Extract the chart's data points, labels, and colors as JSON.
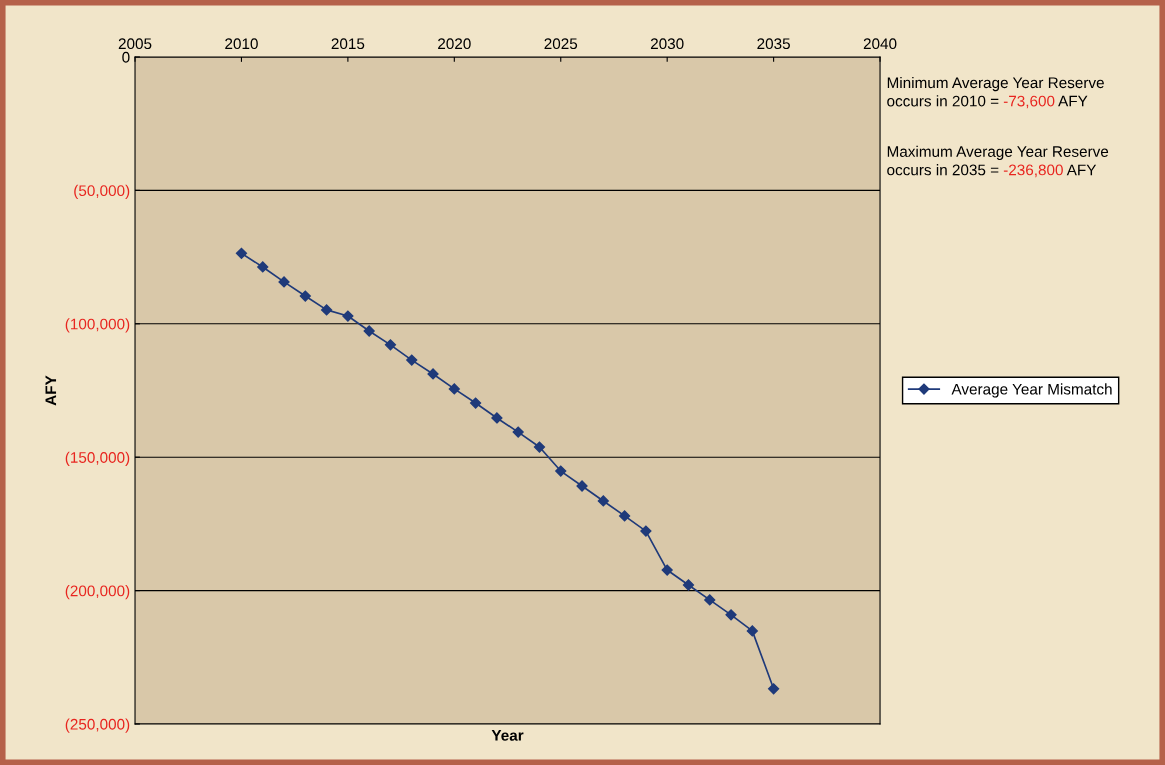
{
  "chart_data": {
    "type": "line",
    "xlabel": "Year",
    "ylabel": "AFY",
    "x": [
      2010,
      2011,
      2012,
      2013,
      2014,
      2015,
      2016,
      2017,
      2018,
      2019,
      2020,
      2021,
      2022,
      2023,
      2024,
      2025,
      2026,
      2027,
      2028,
      2029,
      2030,
      2031,
      2032,
      2033,
      2034,
      2035
    ],
    "series": [
      {
        "name": "Average Year Mismatch",
        "color": "#1f3a7a",
        "values": [
          -73600,
          -78700,
          -84300,
          -89600,
          -94800,
          -97100,
          -102700,
          -107900,
          -113600,
          -118800,
          -124400,
          -129700,
          -135300,
          -140600,
          -146200,
          -155200,
          -160800,
          -166400,
          -172000,
          -177700,
          -192300,
          -197900,
          -203500,
          -209100,
          -215100,
          -236800
        ]
      }
    ],
    "xlim": [
      2005,
      2040
    ],
    "xticks": [
      2005,
      2010,
      2015,
      2020,
      2025,
      2030,
      2035,
      2040
    ],
    "ylim": [
      -250000,
      0
    ],
    "yticks": [
      {
        "value": -250000,
        "label": "(250,000)"
      },
      {
        "value": -200000,
        "label": "(200,000)"
      },
      {
        "value": -150000,
        "label": "(150,000)"
      },
      {
        "value": -100000,
        "label": "(100,000)"
      },
      {
        "value": -50000,
        "label": "(50,000)"
      },
      0
    ],
    "grid": "y",
    "legend": "right",
    "marker": "diamond",
    "line_style": "solid",
    "annotations": [
      "Minimum Average Year Reserve\noccurs in 2010 = -73,600 AFY",
      "Maximum Average Year Reserve\noccurs in 2035 = -236,800 AFY"
    ]
  }
}
